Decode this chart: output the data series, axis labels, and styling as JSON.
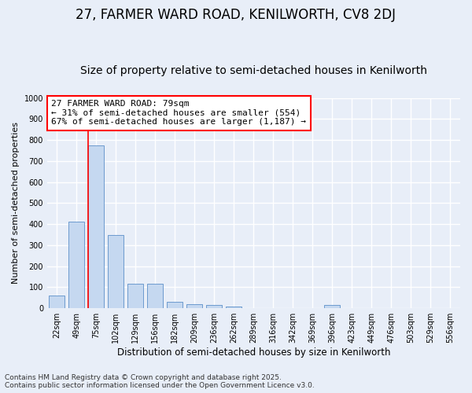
{
  "title1": "27, FARMER WARD ROAD, KENILWORTH, CV8 2DJ",
  "title2": "Size of property relative to semi-detached houses in Kenilworth",
  "xlabel": "Distribution of semi-detached houses by size in Kenilworth",
  "ylabel": "Number of semi-detached properties",
  "categories": [
    "22sqm",
    "49sqm",
    "75sqm",
    "102sqm",
    "129sqm",
    "156sqm",
    "182sqm",
    "209sqm",
    "236sqm",
    "262sqm",
    "289sqm",
    "316sqm",
    "342sqm",
    "369sqm",
    "396sqm",
    "423sqm",
    "449sqm",
    "476sqm",
    "503sqm",
    "529sqm",
    "556sqm"
  ],
  "values": [
    60,
    410,
    775,
    350,
    115,
    115,
    30,
    20,
    15,
    10,
    0,
    0,
    0,
    0,
    15,
    0,
    0,
    0,
    0,
    0,
    0
  ],
  "bar_color": "#c5d8f0",
  "bar_edge_color": "#5b8fc9",
  "highlight_bar_index": 2,
  "annotation_text": "27 FARMER WARD ROAD: 79sqm\n← 31% of semi-detached houses are smaller (554)\n67% of semi-detached houses are larger (1,187) →",
  "annotation_box_color": "white",
  "annotation_box_edge_color": "red",
  "annotation_fontsize": 8,
  "ylim": [
    0,
    1000
  ],
  "yticks": [
    0,
    100,
    200,
    300,
    400,
    500,
    600,
    700,
    800,
    900,
    1000
  ],
  "background_color": "#e8eef8",
  "grid_color": "white",
  "footer1": "Contains HM Land Registry data © Crown copyright and database right 2025.",
  "footer2": "Contains public sector information licensed under the Open Government Licence v3.0.",
  "title1_fontsize": 12,
  "title2_fontsize": 10,
  "tick_fontsize": 7,
  "ylabel_fontsize": 8,
  "xlabel_fontsize": 8.5,
  "footer_fontsize": 6.5
}
